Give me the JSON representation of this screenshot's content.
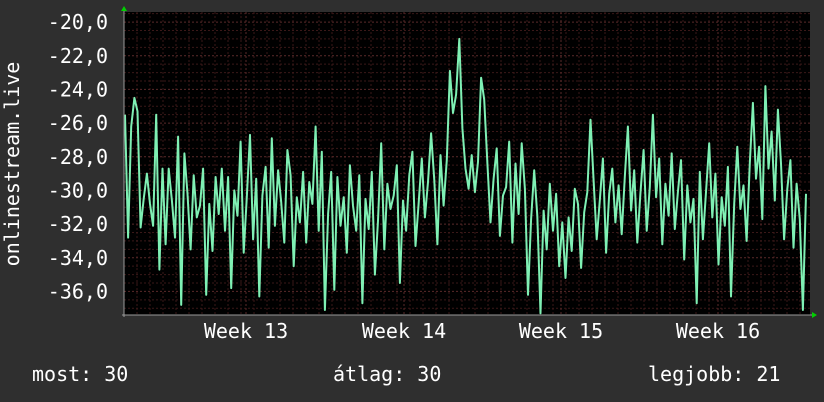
{
  "chart_data": {
    "type": "line",
    "ylabel": "onlinestream.live",
    "y_ticks": [
      "-20,0",
      "-22,0",
      "-24,0",
      "-26,0",
      "-28,0",
      "-30,0",
      "-32,0",
      "-34,0",
      "-36,0"
    ],
    "y_tick_values": [
      -20,
      -22,
      -24,
      -26,
      -28,
      -30,
      -32,
      -34,
      -36
    ],
    "ylim": [
      -37.4,
      -19.4
    ],
    "x_ticks": [
      "Week 13",
      "Week 14",
      "Week 15",
      "Week 16"
    ],
    "grid": true,
    "series": [
      {
        "values": [
          -25.5,
          -32.8,
          -26.2,
          -24.5,
          -25.3,
          -32.2,
          -30.5,
          -29,
          -30.8,
          -32.1,
          -25.5,
          -34.7,
          -28.7,
          -33.2,
          -28.7,
          -30.6,
          -32.8,
          -26.8,
          -36.8,
          -27.8,
          -30.2,
          -33.5,
          -29.1,
          -31.6,
          -30.9,
          -28.7,
          -36.2,
          -30.8,
          -33.6,
          -29.2,
          -31.4,
          -28.7,
          -32.4,
          -29.2,
          -35.8,
          -30,
          -31.5,
          -27.1,
          -33.7,
          -30.4,
          -26.7,
          -32.9,
          -29.3,
          -36.3,
          -30.3,
          -28.6,
          -33.4,
          -26.9,
          -32.1,
          -28.8,
          -30.7,
          -33.1,
          -27.6,
          -29.1,
          -34.5,
          -30.4,
          -31.9,
          -28.9,
          -33.1,
          -29.5,
          -30.8,
          -26.2,
          -32.4,
          -27.7,
          -37.1,
          -31.4,
          -28.9,
          -35.9,
          -29.2,
          -32.1,
          -30.4,
          -33.7,
          -28.5,
          -30.9,
          -32.4,
          -29.1,
          -36.7,
          -30.5,
          -32.3,
          -28.9,
          -35,
          -31.8,
          -27.2,
          -33.5,
          -29.6,
          -31.1,
          -30.3,
          -28.5,
          -35.5,
          -30.6,
          -32.4,
          -29.1,
          -27.7,
          -33.3,
          -30.8,
          -28.1,
          -31.6,
          -29.5,
          -26.6,
          -29.4,
          -33.2,
          -27.9,
          -30.9,
          -28.2,
          -22.9,
          -25.4,
          -24.3,
          -21,
          -26.3,
          -28.7,
          -29.9,
          -27.9,
          -30.1,
          -28.3,
          -23.3,
          -24.6,
          -28.4,
          -31.9,
          -29.3,
          -27.5,
          -32.7,
          -30.3,
          -29.8,
          -27.1,
          -33.1,
          -28.4,
          -31.4,
          -27.2,
          -29.9,
          -36.2,
          -31.7,
          -28.8,
          -31.5,
          -37.3,
          -31.2,
          -33.5,
          -29.6,
          -32.4,
          -30.2,
          -34.5,
          -31.9,
          -35.2,
          -31.6,
          -33.6,
          -29.9,
          -30.8,
          -34.6,
          -31.3,
          -30.1,
          -25.8,
          -29.4,
          -32.9,
          -30.6,
          -28.1,
          -33.7,
          -30.2,
          -28.7,
          -31.9,
          -29.7,
          -32.6,
          -29.2,
          -26.2,
          -31.2,
          -28.8,
          -33.1,
          -30.2,
          -27.6,
          -32.4,
          -29.8,
          -25.5,
          -30.4,
          -28.1,
          -33.2,
          -29.6,
          -31.5,
          -27.8,
          -32.3,
          -30.1,
          -28.2,
          -34.1,
          -29.7,
          -31.9,
          -30.5,
          -36.7,
          -28.9,
          -32.9,
          -30.1,
          -27.2,
          -31.6,
          -29,
          -34.4,
          -30.4,
          -32.1,
          -28.6,
          -36.3,
          -30.8,
          -27.4,
          -31.1,
          -29.7,
          -33,
          -28.4,
          -24.8,
          -29.3,
          -27.4,
          -31.7,
          -23.8,
          -28.7,
          -26.5,
          -30.6,
          -25.2,
          -28.4,
          -32.9,
          -29.9,
          -28.2,
          -33.4,
          -29.6,
          -31.7,
          -37.1,
          -30.2
        ]
      }
    ],
    "stats": [
      {
        "label": "most:",
        "value": "30"
      },
      {
        "label": "átlag:",
        "value": "30"
      },
      {
        "label": "legjobb:",
        "value": "21"
      }
    ]
  },
  "colors": {
    "background": "#2f2f2f",
    "plot_background": "#000000",
    "line": "#7ff0b4",
    "grid_major": "#5a2a2a",
    "grid_minor": "#3a1818",
    "axis": "#9a9a9a",
    "arrow": "#00d000",
    "text": "#ffffff"
  }
}
